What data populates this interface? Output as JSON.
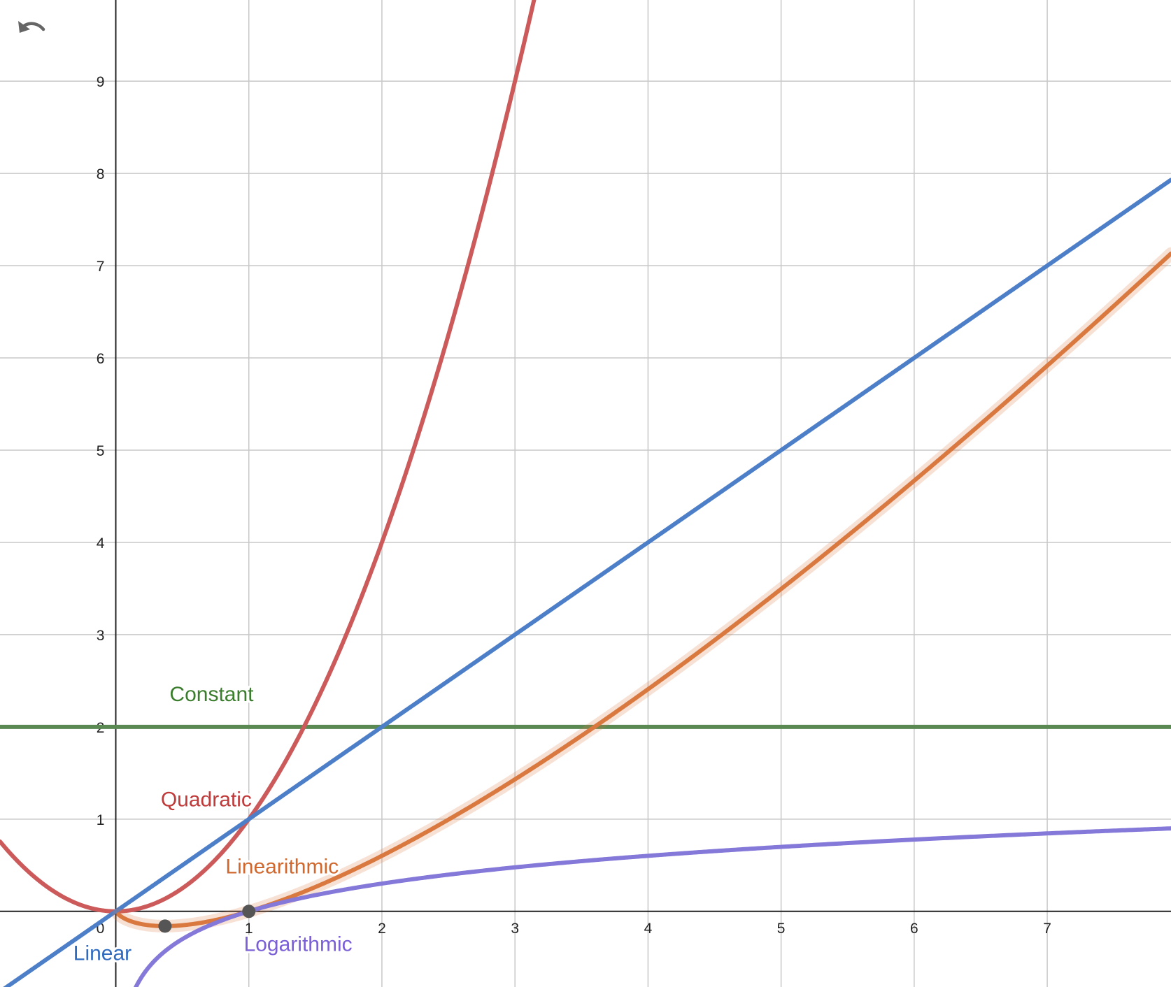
{
  "toolbar": {
    "undo_icon": "undo-arrow-icon"
  },
  "colors": {
    "background": "#ffffff",
    "grid": "#c8c8c8",
    "axis": "#222222",
    "point": "#555555",
    "constant": "#5a8a52",
    "quadratic": "#cc5a5a",
    "linear": "#4d7fc9",
    "linearithmic": "#d9783f",
    "logarithmic": "#8478d9",
    "constant_label": "#3a7d2c",
    "quadratic_label": "#c03a3a",
    "linear_label": "#2f6bbf",
    "linearithmic_label": "#d0672c",
    "logarithmic_label": "#7a5fd6"
  },
  "chart_data": {
    "type": "line",
    "title": "",
    "xlabel": "",
    "ylabel": "",
    "xlim": [
      -0.87,
      7.93
    ],
    "ylim": [
      -0.82,
      9.88
    ],
    "grid": true,
    "legend": "none",
    "x_ticks": [
      0,
      1,
      2,
      3,
      4,
      5,
      6,
      7
    ],
    "y_ticks": [
      1,
      2,
      3,
      4,
      5,
      6,
      7,
      8,
      9
    ],
    "x_tick_labels": [
      "0",
      "1",
      "2",
      "3",
      "4",
      "5",
      "6",
      "7"
    ],
    "y_tick_labels": [
      "1",
      "2",
      "3",
      "4",
      "5",
      "6",
      "7",
      "8",
      "9"
    ],
    "series": [
      {
        "key": "constant",
        "name": "Constant",
        "function": "constant",
        "x": [
          -0.87,
          0,
          1,
          2,
          3,
          4,
          5,
          6,
          7,
          7.93
        ],
        "y": [
          2,
          2,
          2,
          2,
          2,
          2,
          2,
          2,
          2,
          2
        ]
      },
      {
        "key": "quadratic",
        "name": "Quadratic",
        "function": "quadratic",
        "x": [
          -0.87,
          -0.5,
          0,
          0.5,
          1,
          1.5,
          2,
          2.5,
          3,
          3.15
        ],
        "y": [
          0.76,
          0.25,
          0,
          0.25,
          1,
          2.25,
          4,
          6.25,
          9,
          9.92
        ]
      },
      {
        "key": "linear",
        "name": "Linear",
        "function": "linear",
        "x": [
          -0.87,
          0,
          1,
          2,
          3,
          4,
          5,
          6,
          7,
          7.93
        ],
        "y": [
          -0.87,
          0,
          1,
          2,
          3,
          4,
          5,
          6,
          7,
          7.93
        ]
      },
      {
        "key": "linearithmic",
        "name": "Linearithmic",
        "function": "x*log10(x)",
        "x": [
          0.02,
          0.37,
          1,
          2,
          3,
          4,
          5,
          6,
          7,
          7.93
        ],
        "y": [
          -0.03,
          -0.16,
          0,
          0.6,
          1.43,
          2.41,
          3.49,
          4.67,
          5.92,
          7.13
        ]
      },
      {
        "key": "logarithmic",
        "name": "Logarithmic",
        "function": "log10(x)",
        "x": [
          0.15,
          0.5,
          1,
          2,
          3,
          4,
          5,
          6,
          7,
          7.93
        ],
        "y": [
          -0.82,
          -0.3,
          0,
          0.3,
          0.48,
          0.6,
          0.7,
          0.78,
          0.85,
          0.9
        ]
      }
    ],
    "points": [
      {
        "x": 0.37,
        "y": -0.16
      },
      {
        "x": 1,
        "y": 0
      }
    ]
  }
}
